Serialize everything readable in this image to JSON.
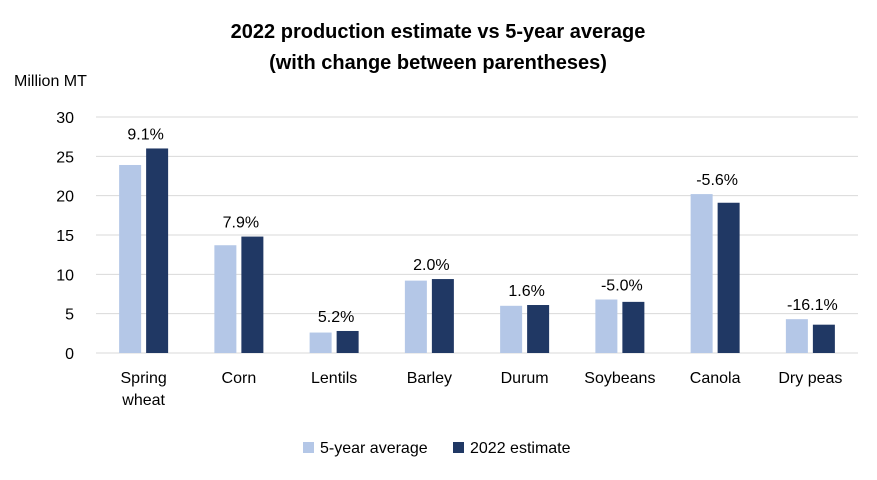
{
  "chart_data": {
    "type": "bar",
    "title_lines": [
      "2022 production  estimate vs 5-year average",
      "(with change  between parentheses)"
    ],
    "ylabel": "Million MT",
    "xlabel": "",
    "ylim": [
      0,
      30
    ],
    "yticks": [
      0,
      5,
      10,
      15,
      20,
      25,
      30
    ],
    "grid": true,
    "legend_position": "bottom",
    "categories": [
      [
        "Spring",
        "wheat"
      ],
      [
        "Corn"
      ],
      [
        "Lentils"
      ],
      [
        "Barley"
      ],
      [
        "Durum"
      ],
      [
        "Soybeans"
      ],
      [
        "Canola"
      ],
      [
        "Dry peas"
      ]
    ],
    "series": [
      {
        "name": "5-year average",
        "color": "#b4c7e7",
        "values": [
          23.9,
          13.7,
          2.6,
          9.2,
          6.0,
          6.8,
          20.2,
          4.3
        ]
      },
      {
        "name": "2022 estimate",
        "color": "#203864",
        "values": [
          26.0,
          14.8,
          2.8,
          9.4,
          6.1,
          6.5,
          19.1,
          3.6
        ]
      }
    ],
    "data_labels": [
      "9.1%",
      "7.9%",
      "5.2%",
      "2.0%",
      "1.6%",
      "-5.0%",
      "-5.6%",
      "-16.1%"
    ]
  }
}
